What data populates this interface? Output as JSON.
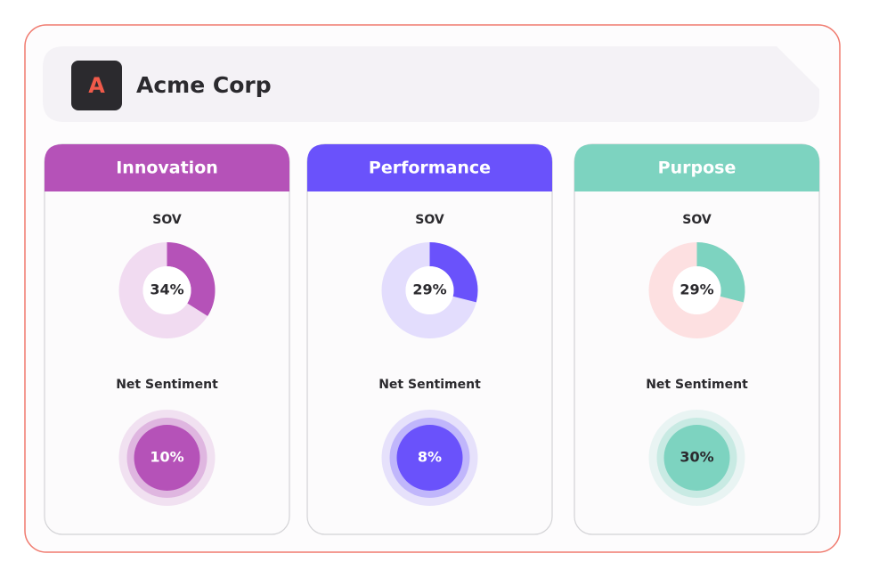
{
  "header": {
    "logo_letter": "A",
    "title": "Acme Corp"
  },
  "cards": [
    {
      "title": "Innovation",
      "color": "#b552b8",
      "track_color": "#f1dbf1",
      "sov_title": "SOV",
      "sov": {
        "value": 34,
        "label": "34%"
      },
      "sentiment_title": "Net Sentiment",
      "sentiment": "10%"
    },
    {
      "title": "Performance",
      "color": "#6a52fb",
      "track_color": "#e3ddfd",
      "sov_title": "SOV",
      "sov": {
        "value": 29,
        "label": "29%"
      },
      "sentiment_title": "Net Sentiment",
      "sentiment": "8%"
    },
    {
      "title": "Purpose",
      "color": "#7dd3c0",
      "track_color": "#fde0e1",
      "sov_title": "SOV",
      "sov": {
        "value": 29,
        "label": "29%"
      },
      "sentiment_title": "Net Sentiment",
      "sentiment": "30%"
    }
  ]
}
